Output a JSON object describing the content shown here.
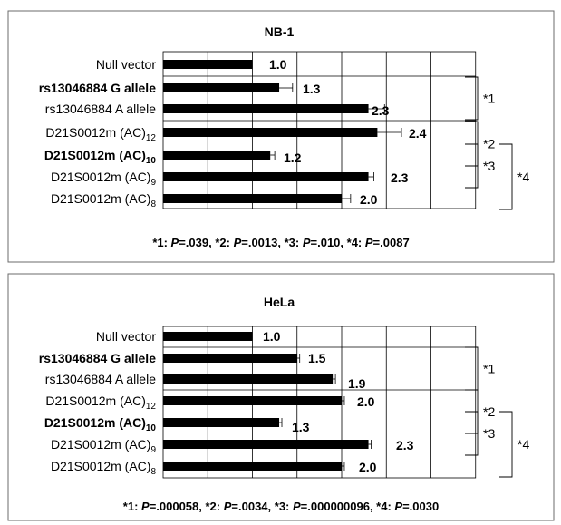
{
  "chart_data": [
    {
      "type": "bar",
      "orientation": "horizontal",
      "title": "NB-1",
      "xlim": [
        0,
        3
      ],
      "grid": true,
      "categories": [
        {
          "label": "Null vector",
          "sub": "",
          "bold": false
        },
        {
          "label": "rs13046884 G allele",
          "sub": "",
          "bold": true
        },
        {
          "label": "rs13046884 A allele",
          "sub": "",
          "bold": false
        },
        {
          "label": "D21S0012m (AC)",
          "sub": "12",
          "bold": false
        },
        {
          "label": "D21S0012m (AC)",
          "sub": "10",
          "bold": true
        },
        {
          "label": "D21S0012m (AC)",
          "sub": "9",
          "bold": false
        },
        {
          "label": "D21S0012m (AC)",
          "sub": "8",
          "bold": false
        }
      ],
      "values": [
        1.0,
        1.3,
        2.3,
        2.4,
        1.2,
        2.3,
        2.0
      ],
      "errors": [
        0.0,
        0.15,
        0.18,
        0.27,
        0.05,
        0.06,
        0.1
      ],
      "value_labels": [
        "1.0",
        "1.3",
        "2.3",
        "2.4",
        "1.2",
        "2.3",
        "2.0"
      ],
      "brackets": [
        {
          "label": "*1",
          "from": 1,
          "to": 2
        },
        {
          "label": "*2",
          "from": 3,
          "to": 4
        },
        {
          "label": "*3",
          "from": 4,
          "to": 5
        },
        {
          "label": "*4",
          "from": 4,
          "to": 6
        }
      ],
      "footnote": [
        {
          "tag": "*1:",
          "p": "P",
          "val": "=.039,"
        },
        {
          "tag": "*2:",
          "p": "P",
          "val": "=.0013,"
        },
        {
          "tag": "*3:",
          "p": "P",
          "val": "=.010,"
        },
        {
          "tag": "*4:",
          "p": "P",
          "val": "=.0087"
        }
      ]
    },
    {
      "type": "bar",
      "orientation": "horizontal",
      "title": "HeLa",
      "xlim": [
        0,
        3
      ],
      "grid": true,
      "categories": [
        {
          "label": "Null vector",
          "sub": "",
          "bold": false
        },
        {
          "label": "rs13046884 G allele",
          "sub": "",
          "bold": true
        },
        {
          "label": "rs13046884 A allele",
          "sub": "",
          "bold": false
        },
        {
          "label": "D21S0012m (AC)",
          "sub": "12",
          "bold": false
        },
        {
          "label": "D21S0012m (AC)",
          "sub": "10",
          "bold": true
        },
        {
          "label": "D21S0012m (AC)",
          "sub": "9",
          "bold": false
        },
        {
          "label": "D21S0012m (AC)",
          "sub": "8",
          "bold": false
        }
      ],
      "values": [
        1.0,
        1.5,
        1.9,
        2.0,
        1.3,
        2.3,
        2.0
      ],
      "errors": [
        0.0,
        0.03,
        0.03,
        0.03,
        0.03,
        0.03,
        0.03
      ],
      "value_labels": [
        "1.0",
        "1.5",
        "1.9",
        "2.0",
        "1.3",
        "2.3",
        "2.0"
      ],
      "brackets": [
        {
          "label": "*1",
          "from": 1,
          "to": 2
        },
        {
          "label": "*2",
          "from": 3,
          "to": 4
        },
        {
          "label": "*3",
          "from": 4,
          "to": 5
        },
        {
          "label": "*4",
          "from": 4,
          "to": 6
        }
      ],
      "footnote": [
        {
          "tag": "*1:",
          "p": "P",
          "val": "=.000058,"
        },
        {
          "tag": "*2:",
          "p": "P",
          "val": "=.0034,"
        },
        {
          "tag": "*3:",
          "p": "P",
          "val": "=.000000096,"
        },
        {
          "tag": "*4:",
          "p": "P",
          "val": "=.0030"
        }
      ]
    }
  ]
}
